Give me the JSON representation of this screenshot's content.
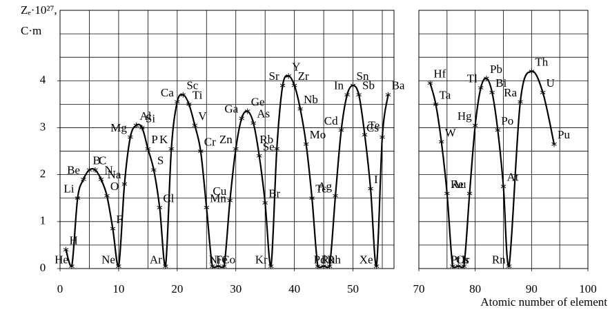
{
  "chart_data": {
    "type": "line",
    "ylabel": [
      "Zₑ·10²⁷,",
      "C·m"
    ],
    "xlabel": "Atomic number of element",
    "ylim": [
      0,
      5.5
    ],
    "yticks": [
      0,
      1,
      2,
      3,
      4
    ],
    "ygrid": [
      0.5,
      1,
      1.5,
      2,
      2.5,
      3,
      3.5,
      4,
      4.5,
      5
    ],
    "grid": true,
    "color": "#000000",
    "panels": [
      {
        "xlim": [
          0,
          57
        ],
        "xticks": [
          0,
          10,
          20,
          30,
          40,
          50
        ],
        "xgrid": [
          5,
          10,
          15,
          20,
          25,
          30,
          35,
          40,
          45,
          50,
          55
        ]
      },
      {
        "xlim": [
          70,
          100
        ],
        "xticks": [
          70,
          80,
          90,
          100
        ],
        "xgrid": [
          75,
          80,
          85,
          90,
          95
        ]
      }
    ],
    "series": [
      {
        "x": [
          1,
          2,
          3,
          4,
          5,
          6,
          7,
          8,
          9,
          10,
          11,
          12,
          13,
          14,
          15,
          16,
          17,
          18,
          19,
          20,
          21,
          22,
          23,
          24,
          25,
          26,
          27,
          28,
          29,
          30,
          31,
          32,
          33,
          34,
          35,
          36,
          37,
          38,
          39,
          40,
          41,
          42,
          43,
          44,
          45,
          46,
          47,
          48,
          49,
          50,
          51,
          52,
          53,
          54,
          55,
          56,
          72,
          73,
          74,
          75,
          76,
          77,
          78,
          79,
          80,
          81,
          82,
          83,
          84,
          85,
          86,
          88,
          90,
          92,
          94
        ],
        "values": [
          0.4,
          0.05,
          1.5,
          1.9,
          2.1,
          2.1,
          1.9,
          1.55,
          0.85,
          0.05,
          1.8,
          2.8,
          3.05,
          3.0,
          2.55,
          2.1,
          1.3,
          0.05,
          2.55,
          3.55,
          3.7,
          3.5,
          3.05,
          2.5,
          1.3,
          0.05,
          0.05,
          0.05,
          1.45,
          2.55,
          3.2,
          3.35,
          3.1,
          2.4,
          1.4,
          0.05,
          2.55,
          3.9,
          4.1,
          3.9,
          3.4,
          2.65,
          1.5,
          0.05,
          0.05,
          0.05,
          1.55,
          2.95,
          3.7,
          3.9,
          3.7,
          2.85,
          1.7,
          0.05,
          2.8,
          3.7,
          3.95,
          3.5,
          2.7,
          1.6,
          0.05,
          0.05,
          0.05,
          1.6,
          3.05,
          3.85,
          4.05,
          3.75,
          2.95,
          1.75,
          0.05,
          3.55,
          4.2,
          3.75,
          2.65
        ],
        "labels": [
          "H",
          "He",
          "Li",
          "Be",
          "B",
          "C",
          "N",
          "O",
          "F",
          "Ne",
          "Na",
          "Mg",
          "Al",
          "Si",
          "P",
          "S",
          "Cl",
          "Ar",
          "K",
          "Ca",
          "Sc",
          "Ti",
          "V",
          "Cr",
          "Mn",
          "Fe",
          "Co",
          "Ni",
          "Cu",
          "Zn",
          "Ga",
          "Ge",
          "As",
          "Se",
          "Br",
          "Kr",
          "Rb",
          "Sr",
          "Y",
          "Zr",
          "Nb",
          "Mo",
          "Tc",
          "Ru",
          "Rh",
          "Pd",
          "Ag",
          "Cd",
          "In",
          "Sn",
          "Sb",
          "Te",
          "I",
          "Xe",
          "Cs",
          "Ba",
          "Hf",
          "Ta",
          "W",
          "Re",
          "Os",
          "Ir",
          "Pt",
          "Au",
          "Hg",
          "Tl",
          "Pb",
          "Bi",
          "Po",
          "At",
          "Rn",
          "Ra",
          "Th",
          "U",
          "Pu"
        ]
      }
    ]
  }
}
